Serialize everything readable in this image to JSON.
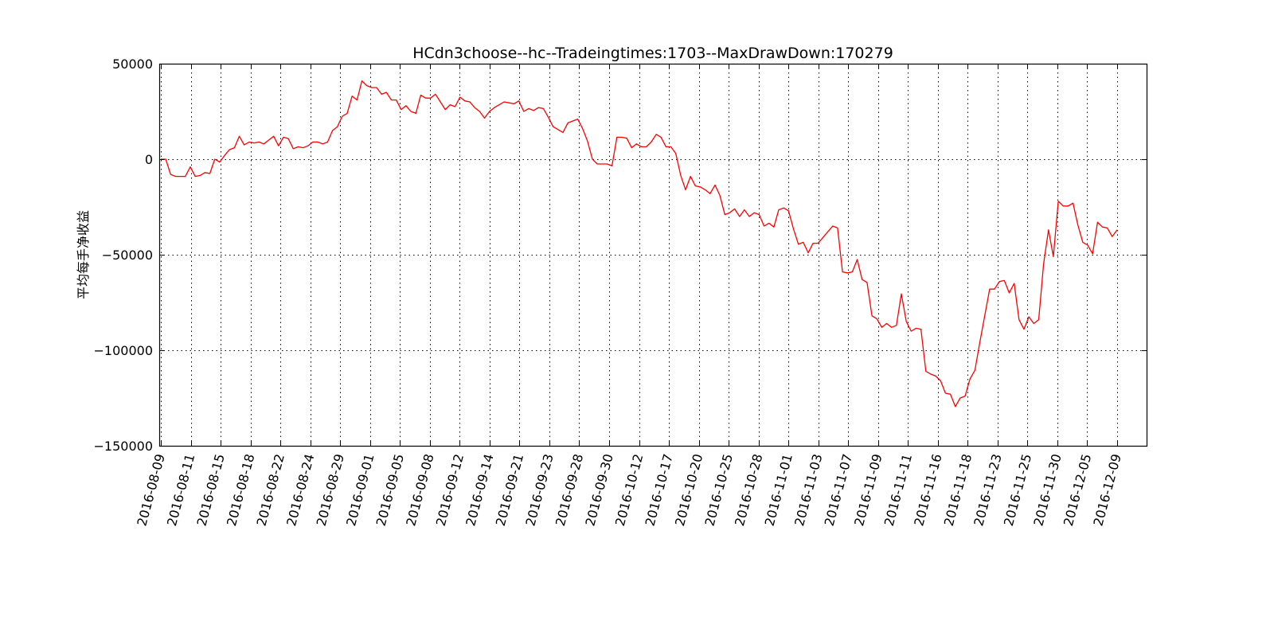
{
  "chart_data": {
    "type": "line",
    "title": "HCdn3choose--hc--Tradeingtimes:1703--MaxDrawDown:170279",
    "xlabel": "",
    "ylabel": "平均每手净收益",
    "ylim": [
      -150000,
      50000
    ],
    "yticks": [
      50000,
      0,
      -50000,
      -100000,
      -150000
    ],
    "ytick_labels": [
      "50000",
      "0",
      "−50000",
      "−100000",
      "−150000"
    ],
    "grid": true,
    "x_type": "date_category",
    "xtick_labels": [
      "2016-08-09",
      "2016-08-11",
      "2016-08-15",
      "2016-08-18",
      "2016-08-22",
      "2016-08-24",
      "2016-08-29",
      "2016-09-01",
      "2016-09-05",
      "2016-09-08",
      "2016-09-12",
      "2016-09-14",
      "2016-09-21",
      "2016-09-23",
      "2016-09-28",
      "2016-09-30",
      "2016-10-12",
      "2016-10-17",
      "2016-10-20",
      "2016-10-25",
      "2016-10-28",
      "2016-11-01",
      "2016-11-03",
      "2016-11-07",
      "2016-11-09",
      "2016-11-11",
      "2016-11-16",
      "2016-11-18",
      "2016-11-23",
      "2016-11-25",
      "2016-11-30",
      "2016-12-05",
      "2016-12-09"
    ],
    "series": [
      {
        "color": "#ff0000",
        "values": [
          0,
          0,
          -8000,
          -9000,
          -9000,
          -9000,
          -4000,
          -9000,
          -8500,
          -7000,
          -7500,
          0,
          -1500,
          2000,
          5000,
          6000,
          12000,
          7500,
          9000,
          8500,
          9000,
          8000,
          10000,
          12000,
          7000,
          11500,
          10800,
          5500,
          6500,
          6000,
          7000,
          9000,
          9000,
          8000,
          9000,
          15000,
          17000,
          22500,
          24000,
          33000,
          31000,
          41000,
          38500,
          37500,
          37500,
          34000,
          35000,
          31000,
          31000,
          26000,
          28000,
          25000,
          24000,
          33500,
          32000,
          32000,
          34000,
          30000,
          26000,
          28500,
          27500,
          32500,
          30500,
          30000,
          27000,
          25000,
          21500,
          25000,
          27000,
          28500,
          30000,
          29500,
          29000,
          30500,
          25000,
          26500,
          25500,
          27000,
          26500,
          22000,
          17000,
          15500,
          14000,
          19000,
          20000,
          21000,
          16000,
          9500,
          0,
          -2500,
          -2500,
          -2500,
          -3500,
          11500,
          11500,
          11000,
          6000,
          8000,
          6500,
          6500,
          9000,
          13000,
          11500,
          6500,
          6500,
          3000,
          -8500,
          -16000,
          -9000,
          -14000,
          -14500,
          -16000,
          -18000,
          -13500,
          -19000,
          -29000,
          -28000,
          -26000,
          -30000,
          -26500,
          -30000,
          -28000,
          -29000,
          -35000,
          -33500,
          -35500,
          -26500,
          -25500,
          -27000,
          -36500,
          -44500,
          -43500,
          -49000,
          -44000,
          -44000,
          -41000,
          -38000,
          -35000,
          -36000,
          -59000,
          -59500,
          -59000,
          -52500,
          -63000,
          -64500,
          -82000,
          -83500,
          -88000,
          -86000,
          -88000,
          -87000,
          -70500,
          -85000,
          -90000,
          -88500,
          -89000,
          -111000,
          -112500,
          -113500,
          -116000,
          -122500,
          -123000,
          -129500,
          -125000,
          -124000,
          -115000,
          -110500,
          -96000,
          -82000,
          -68000,
          -68000,
          -64000,
          -63500,
          -70000,
          -65000,
          -84000,
          -89000,
          -82500,
          -86000,
          -84000,
          -55000,
          -37000,
          -51000,
          -22000,
          -24500,
          -24500,
          -23000,
          -34500,
          -43500,
          -45000,
          -49500,
          -33000,
          -35500,
          -36000,
          -40500,
          -37000
        ]
      }
    ]
  }
}
